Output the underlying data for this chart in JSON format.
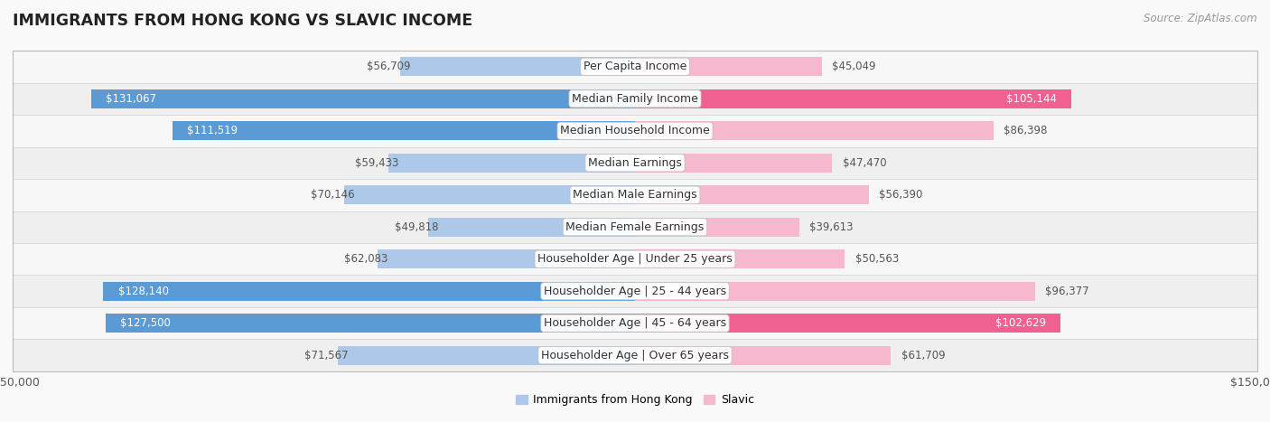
{
  "title": "IMMIGRANTS FROM HONG KONG VS SLAVIC INCOME",
  "source": "Source: ZipAtlas.com",
  "categories": [
    "Per Capita Income",
    "Median Family Income",
    "Median Household Income",
    "Median Earnings",
    "Median Male Earnings",
    "Median Female Earnings",
    "Householder Age | Under 25 years",
    "Householder Age | 25 - 44 years",
    "Householder Age | 45 - 64 years",
    "Householder Age | Over 65 years"
  ],
  "hk_values": [
    56709,
    131067,
    111519,
    59433,
    70146,
    49818,
    62083,
    128140,
    127500,
    71567
  ],
  "slavic_values": [
    45049,
    105144,
    86398,
    47470,
    56390,
    39613,
    50563,
    96377,
    102629,
    61709
  ],
  "hk_color_light": "#adc8e8",
  "hk_color_dark": "#5b9bd5",
  "slavic_color_light": "#f5b8ce",
  "slavic_color_dark": "#f06090",
  "hk_label": "Immigrants from Hong Kong",
  "slavic_label": "Slavic",
  "xlim": 150000,
  "bar_height": 0.58,
  "label_fontsize": 9.0,
  "value_fontsize": 8.5,
  "title_fontsize": 12.5,
  "source_fontsize": 8.5,
  "dark_threshold": 100000,
  "row_colors": [
    "#f7f7f7",
    "#efefef"
  ]
}
